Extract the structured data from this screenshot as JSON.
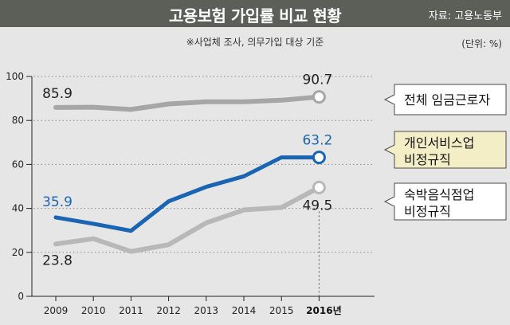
{
  "header": {
    "title": "고용보험 가입률 비교 현황",
    "source": "자료: 고용노동부"
  },
  "note": "※사업체 조사, 의무가입 대상 기준",
  "unit": "(단위: %)",
  "colors": {
    "total": "#a6a6a6",
    "personal": "#1a64b4",
    "lodging": "#b8b8b8",
    "highlight_box": "#f4eec6"
  },
  "chart_data": {
    "type": "line",
    "x": [
      "2009",
      "2010",
      "2011",
      "2012",
      "2013",
      "2014",
      "2015",
      "2016년"
    ],
    "ylim": [
      0,
      100
    ],
    "yticks": [
      "0",
      "20",
      "40",
      "60",
      "80",
      "100"
    ],
    "series": [
      {
        "name": "전체 임금근로자",
        "name_lines": [
          "전체 임금근로자"
        ],
        "values": [
          85.9,
          86.0,
          85.0,
          87.5,
          88.5,
          88.5,
          89.2,
          90.7
        ],
        "labels": {
          "first": "85.9",
          "last": "90.7"
        }
      },
      {
        "name": "개인서비스업 비정규직",
        "name_lines": [
          "개인서비스업",
          "비정규직"
        ],
        "values": [
          35.9,
          33.0,
          29.8,
          43.2,
          49.8,
          54.6,
          63.2,
          63.2
        ],
        "labels": {
          "first": "35.9",
          "last": "63.2"
        }
      },
      {
        "name": "숙박음식점업 비정규직",
        "name_lines": [
          "숙박음식점업",
          "비정규직"
        ],
        "values": [
          23.8,
          26.2,
          20.4,
          23.5,
          33.4,
          39.3,
          40.4,
          49.5
        ],
        "labels": {
          "first": "23.8",
          "last": "49.5"
        }
      }
    ]
  }
}
